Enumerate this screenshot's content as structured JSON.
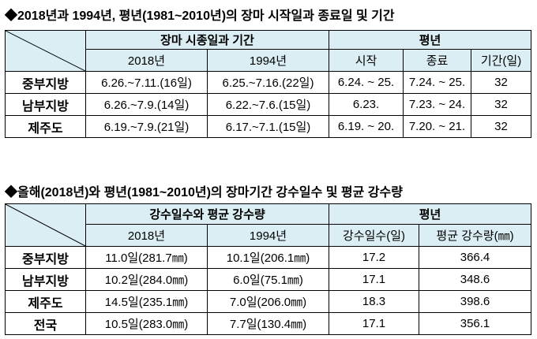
{
  "section1": {
    "title": "◆2018년과 1994년, 평년(1981~2010년)의 장마 시작일과 종료일 및 기간",
    "table": {
      "header_top": [
        "장마 시종일과 기간",
        "평년"
      ],
      "header_sub": [
        "2018년",
        "1994년",
        "시작",
        "종료",
        "기간(일)"
      ],
      "rows": [
        [
          "중부지방",
          "6.26.~7.11.(16일)",
          "6.25.~7.16.(22일)",
          "6.24. ~ 25.",
          "7.24. ~ 25.",
          "32"
        ],
        [
          "남부지방",
          "6.26.~7.9.(14일)",
          "6.22.~7.6.(15일)",
          "6.23.",
          "7.23. ~ 24.",
          "32"
        ],
        [
          "제주도",
          "6.19.~7.9.(21일)",
          "6.17.~7.1.(15일)",
          "6.19. ~ 20.",
          "7.20. ~ 21.",
          "32"
        ]
      ]
    }
  },
  "section2": {
    "title": "◆올해(2018년)와 평년(1981~2010년)의 장마기간 강수일수 및 평균 강수량",
    "table": {
      "header_top": [
        "강수일수와 평균 강수량",
        "평년"
      ],
      "header_sub": [
        "2018년",
        "1994년",
        "강수일수(일)",
        "평균 강수량(㎜)"
      ],
      "rows": [
        [
          "중부지방",
          "11.0일(281.7㎜)",
          "10.1일(206.1㎜)",
          "17.2",
          "366.4"
        ],
        [
          "남부지방",
          "10.2일(284.0㎜)",
          "6.0일(75.1㎜)",
          "17.1",
          "348.6"
        ],
        [
          "제주도",
          "14.5일(235.1㎜)",
          "7.0일(206.0㎜)",
          "18.3",
          "398.6"
        ],
        [
          "전국",
          "10.5일(283.0㎜)",
          "7.7일(130.4㎜)",
          "17.1",
          "356.1"
        ]
      ]
    }
  }
}
